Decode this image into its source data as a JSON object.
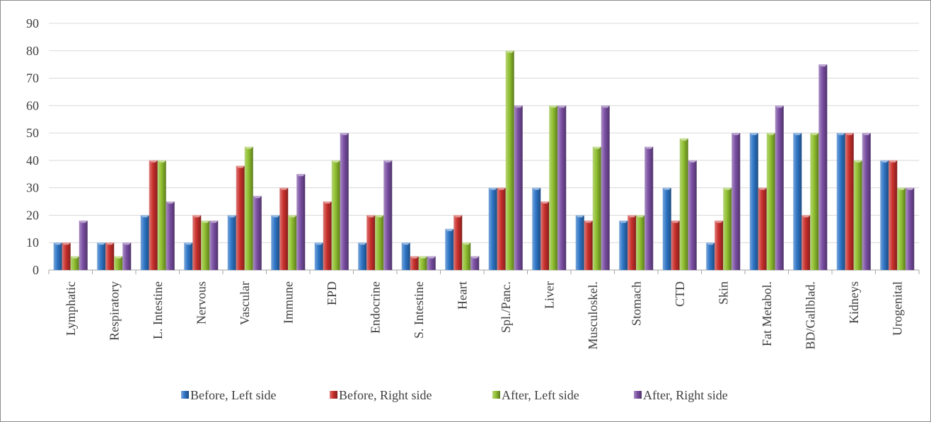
{
  "chart_data": {
    "type": "bar",
    "title": "",
    "xlabel": "",
    "ylabel": "",
    "ylim": [
      0,
      90
    ],
    "yticks": [
      0,
      10,
      20,
      30,
      40,
      50,
      60,
      70,
      80,
      90
    ],
    "grid": "horizontal",
    "legend_position": "bottom",
    "categories": [
      "Lymphatic",
      "Respiratory",
      "L. Intestine",
      "Nervous",
      "Vascular",
      "Immune",
      "EPD",
      "Endocrine",
      "S. Intestine",
      "Heart",
      "Spl./Panc.",
      "Liver",
      "Musculoskel.",
      "Stomach",
      "CTD",
      "Skin",
      "Fat Metabol.",
      "BD/Gallblad.",
      "Kidneys",
      "Urogenital"
    ],
    "series": [
      {
        "name": "Before, Left side",
        "color": "#2e75c6",
        "values": [
          10,
          10,
          20,
          10,
          20,
          20,
          10,
          10,
          10,
          15,
          30,
          30,
          20,
          18,
          30,
          10,
          50,
          50,
          50,
          40
        ]
      },
      {
        "name": "Before, Right side",
        "color": "#c9302c",
        "values": [
          10,
          10,
          40,
          20,
          38,
          30,
          25,
          20,
          5,
          20,
          30,
          25,
          18,
          20,
          18,
          18,
          30,
          20,
          50,
          40
        ]
      },
      {
        "name": "After, Left side",
        "color": "#8fbf2f",
        "values": [
          5,
          5,
          40,
          18,
          45,
          20,
          40,
          20,
          5,
          10,
          80,
          60,
          45,
          20,
          48,
          30,
          50,
          50,
          40,
          30
        ]
      },
      {
        "name": "After, Right side",
        "color": "#7a4fa3",
        "values": [
          18,
          10,
          25,
          18,
          27,
          35,
          50,
          40,
          5,
          5,
          60,
          60,
          60,
          45,
          40,
          50,
          60,
          75,
          50,
          30
        ]
      }
    ]
  }
}
